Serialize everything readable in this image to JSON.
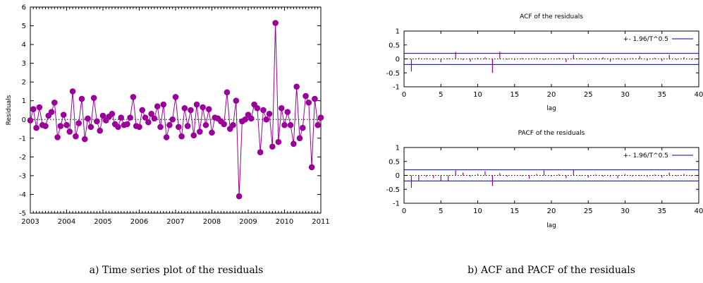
{
  "captions": {
    "a": "a) Time series plot of the residuals",
    "b": "b) ACF and PACF of the residuals"
  },
  "chart_data": [
    {
      "type": "line",
      "ylabel": "Residuals",
      "xlabel": "",
      "title": "",
      "xlim": [
        2003,
        2011
      ],
      "ylim": [
        -5,
        6
      ],
      "x_ticks": [
        "2003",
        "2004",
        "2005",
        "2006",
        "2007",
        "2008",
        "2009",
        "2010",
        "2011"
      ],
      "y_ticks": [
        "6",
        "5",
        "4",
        "3",
        "2",
        "1",
        "0",
        "-1",
        "-2",
        "-3",
        "-4",
        "-5"
      ],
      "zero_line": "dotted",
      "color": "#990099",
      "series": [
        {
          "values": [
            -0.05,
            0.55,
            -0.45,
            0.65,
            -0.3,
            -0.35,
            0.2,
            0.4,
            0.9,
            -0.95,
            -0.35,
            0.25,
            -0.3,
            -0.65,
            1.5,
            -0.9,
            -0.2,
            1.1,
            -1.05,
            0.05,
            -0.4,
            1.15,
            -0.1,
            -0.6,
            0.2,
            -0.05,
            0.15,
            0.3,
            -0.25,
            -0.4,
            0.1,
            -0.3,
            -0.25,
            0.1,
            1.2,
            -0.35,
            -0.4,
            0.5,
            0.1,
            -0.15,
            0.3,
            0.05,
            0.7,
            -0.4,
            0.8,
            -0.95,
            -0.3,
            0.0,
            1.2,
            -0.4,
            -0.9,
            0.6,
            -0.35,
            0.5,
            -0.85,
            0.8,
            -0.65,
            0.65,
            -0.3,
            0.55,
            -0.7,
            0.1,
            0.05,
            -0.1,
            -0.25,
            1.45,
            -0.5,
            -0.3,
            1.0,
            -4.1,
            -0.1,
            0.0,
            0.25,
            0.05,
            0.8,
            0.6,
            -1.75,
            0.5,
            0.0,
            0.3,
            -1.45,
            5.15,
            -1.2,
            0.6,
            -0.3,
            0.4,
            -0.3,
            -1.3,
            1.75,
            -1.0,
            -0.45,
            1.25,
            0.9,
            -2.55,
            1.1,
            -0.3,
            0.1
          ]
        }
      ]
    },
    {
      "type": "bar",
      "title": "ACF of the residuals",
      "xlabel": "lag",
      "ylabel": "",
      "xlim": [
        0,
        40
      ],
      "ylim": [
        -1,
        1
      ],
      "x_ticks": [
        "0",
        "5",
        "10",
        "15",
        "20",
        "25",
        "30",
        "35",
        "40"
      ],
      "y_ticks": [
        "1",
        "0.5",
        "0",
        "-0.5",
        "-1"
      ],
      "legend": "+- 1.96/T^0.5",
      "legend_position": "top-right",
      "confidence_bound": 0.2,
      "bar_color": "#990099",
      "bound_color": "#0000aa",
      "lags": [
        1,
        2,
        3,
        4,
        5,
        6,
        7,
        8,
        9,
        10,
        11,
        12,
        13,
        14,
        15,
        16,
        17,
        18,
        19,
        20,
        21,
        22,
        23,
        24,
        25,
        26,
        27,
        28,
        29,
        30,
        31,
        32,
        33,
        34,
        35,
        36,
        37,
        38,
        39
      ],
      "values": [
        -0.45,
        0.04,
        0.02,
        -0.04,
        -0.12,
        0.02,
        0.25,
        -0.04,
        -0.1,
        0.04,
        0.06,
        -0.5,
        0.26,
        -0.03,
        -0.04,
        0.03,
        -0.02,
        0.03,
        -0.04,
        0.02,
        0.03,
        -0.12,
        0.15,
        0.03,
        -0.04,
        0.03,
        0.06,
        -0.1,
        0.03,
        -0.05,
        0.03,
        0.1,
        -0.06,
        0.04,
        -0.08,
        0.15,
        -0.04,
        0.06,
        -0.03
      ]
    },
    {
      "type": "bar",
      "title": "PACF of the residuals",
      "xlabel": "lag",
      "ylabel": "",
      "xlim": [
        0,
        40
      ],
      "ylim": [
        -1,
        1
      ],
      "x_ticks": [
        "0",
        "5",
        "10",
        "15",
        "20",
        "25",
        "30",
        "35",
        "40"
      ],
      "y_ticks": [
        "1",
        "0.5",
        "0",
        "-0.5",
        "-1"
      ],
      "legend": "+- 1.96/T^0.5",
      "legend_position": "top-right",
      "confidence_bound": 0.2,
      "bar_color": "#990099",
      "bound_color": "#0000aa",
      "lags": [
        1,
        2,
        3,
        4,
        5,
        6,
        7,
        8,
        9,
        10,
        11,
        12,
        13,
        14,
        15,
        16,
        17,
        18,
        19,
        20,
        21,
        22,
        23,
        24,
        25,
        26,
        27,
        28,
        29,
        30,
        31,
        32,
        33,
        34,
        35,
        36,
        37,
        38,
        39
      ],
      "values": [
        -0.45,
        -0.18,
        -0.05,
        -0.1,
        -0.2,
        -0.22,
        0.18,
        0.1,
        -0.05,
        0.05,
        0.15,
        -0.38,
        0.08,
        -0.05,
        0.02,
        -0.03,
        -0.12,
        0.05,
        0.18,
        -0.04,
        0.04,
        -0.1,
        0.22,
        -0.02,
        -0.08,
        0.03,
        -0.05,
        -0.05,
        -0.1,
        0.04,
        -0.04,
        -0.03,
        -0.05,
        0.03,
        -0.08,
        0.1,
        -0.03,
        0.05,
        -0.03
      ]
    }
  ]
}
